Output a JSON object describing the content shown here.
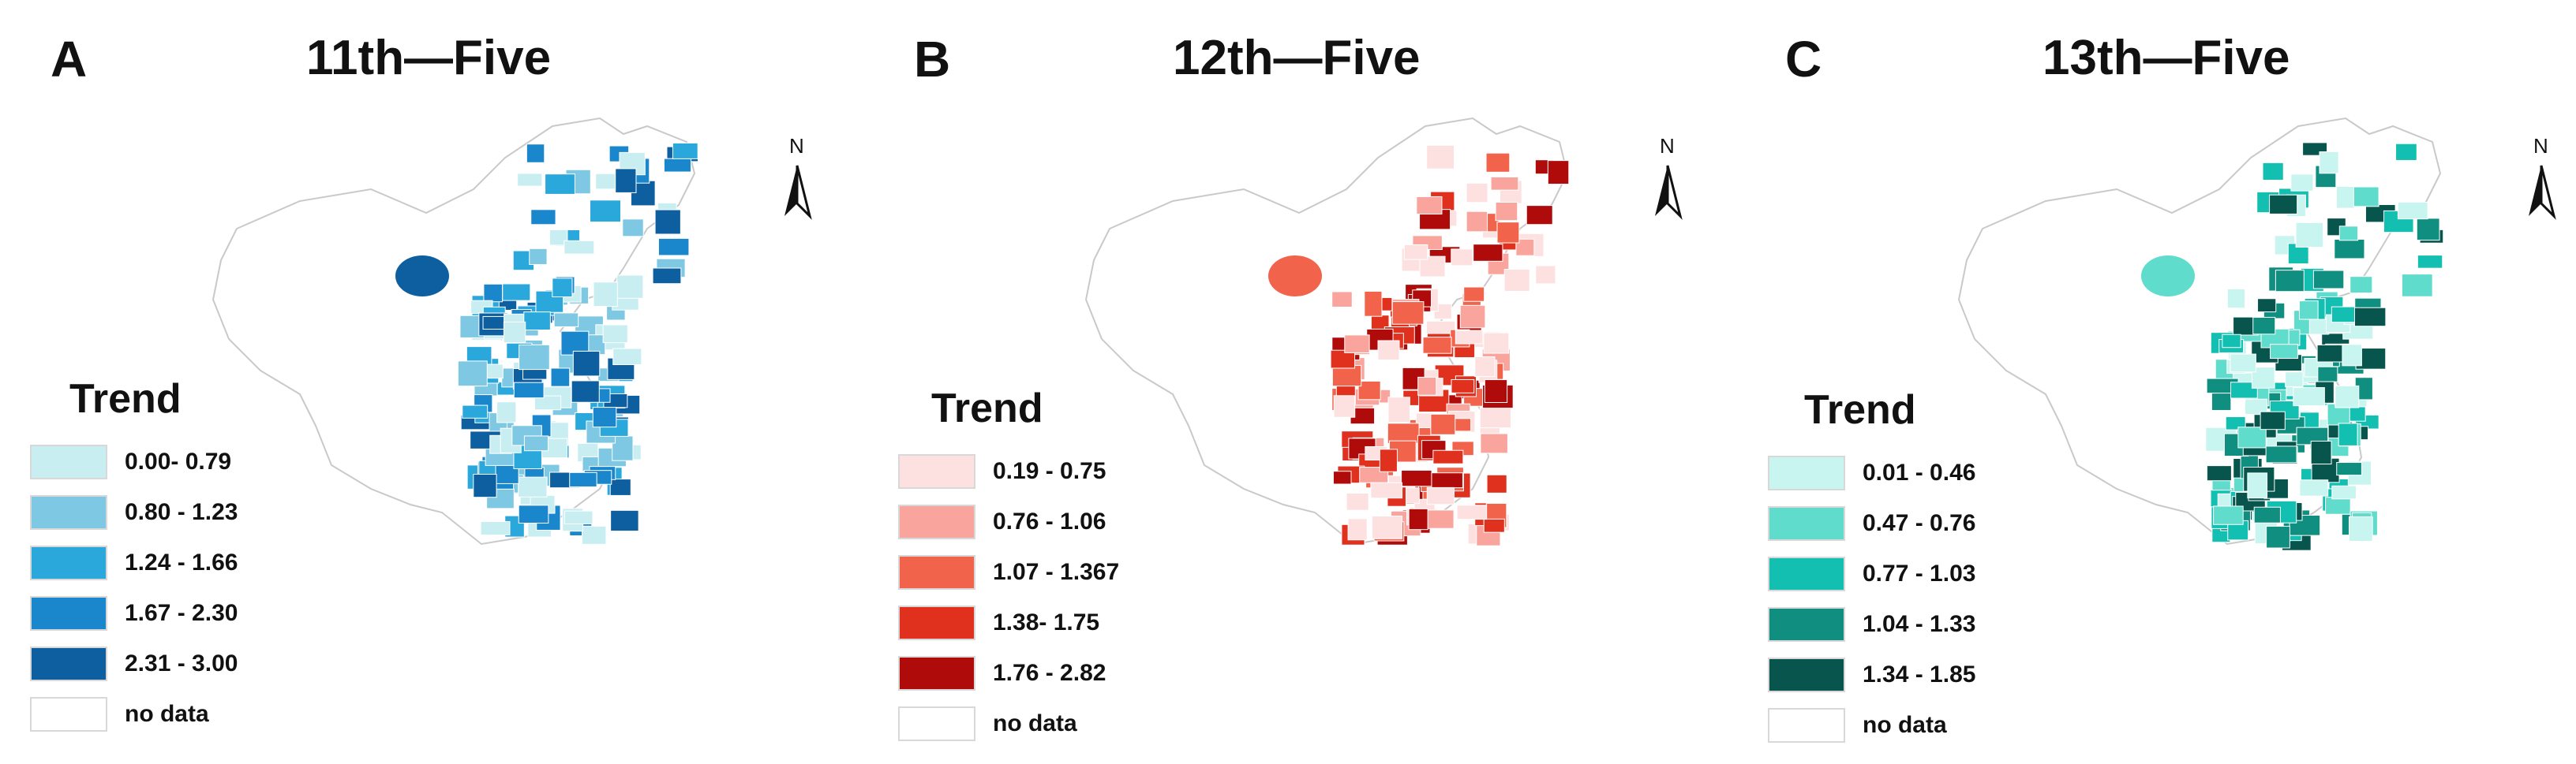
{
  "panels": [
    {
      "letter": "A",
      "title": "11th—Five",
      "legend_title": "Trend",
      "north_label": "N",
      "legend": [
        {
          "label": "0.00- 0.79",
          "color": "#c8eef2"
        },
        {
          "label": "0.80 - 1.23",
          "color": "#7ec8e3"
        },
        {
          "label": "1.24 - 1.66",
          "color": "#2aa8dc"
        },
        {
          "label": "1.67 - 2.30",
          "color": "#1a86cc"
        },
        {
          "label": "2.31 - 3.00",
          "color": "#0e5fa0"
        },
        {
          "label": "no data",
          "color": "#ffffff"
        }
      ]
    },
    {
      "letter": "B",
      "title": "12th—Five",
      "legend_title": "Trend",
      "north_label": "N",
      "legend": [
        {
          "label": "0.19 - 0.75",
          "color": "#fde0e0"
        },
        {
          "label": "0.76 - 1.06",
          "color": "#f9a49c"
        },
        {
          "label": "1.07 - 1.367",
          "color": "#f2634c"
        },
        {
          "label": "1.38- 1.75",
          "color": "#e0301e"
        },
        {
          "label": "1.76 - 2.82",
          "color": "#b00b0b"
        },
        {
          "label": "no data",
          "color": "#ffffff"
        }
      ]
    },
    {
      "letter": "C",
      "title": "13th—Five",
      "legend_title": "Trend",
      "north_label": "N",
      "legend": [
        {
          "label": "0.01 - 0.46",
          "color": "#c8f5ef"
        },
        {
          "label": "0.47 - 0.76",
          "color": "#5fdccb"
        },
        {
          "label": "0.77 - 1.03",
          "color": "#12bfb0"
        },
        {
          "label": "1.04 - 1.33",
          "color": "#108f80"
        },
        {
          "label": "1.34 - 1.85",
          "color": "#07554c"
        },
        {
          "label": "no data",
          "color": "#ffffff"
        }
      ]
    }
  ]
}
